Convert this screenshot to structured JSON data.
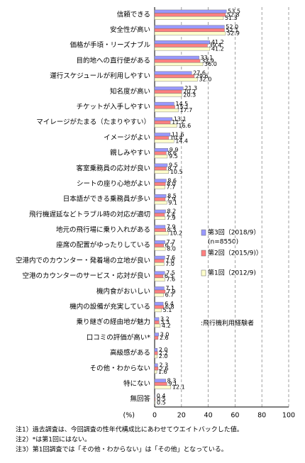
{
  "chart_data": {
    "type": "bar",
    "orientation": "horizontal",
    "categories": [
      "信頼できる",
      "安全性が高い",
      "価格が手頃・リーズナブル",
      "目的地への直行便がある",
      "運行スケジュールが利用しやすい",
      "知名度が高い",
      "チケットが入手しやすい",
      "マイレージがたまる（たまりやすい）",
      "イメージがよい",
      "親しみやすい",
      "客室乗務員の応対が良い",
      "シートの座り心地がよい",
      "日本語ができる乗務員が多い",
      "飛行機遅延などトラブル時の対応が適切",
      "地元の飛行場に乗り入れがある",
      "座席の配置がゆったりしている",
      "空港内でのカウンター・発着場の立地が良い",
      "空港のカウンターのサービス・応対が良い",
      "機内食がおいしい",
      "機内の設備が充実している",
      "乗り継ぎの経由地が魅力",
      "口コミの評価が高い*",
      "高級感がある",
      "その他・わからない",
      "特にない",
      "無回答"
    ],
    "series": [
      {
        "name": "第3回（2018/9）",
        "color": "#9999ff",
        "values": [
          53.5,
          52.0,
          41.2,
          33.1,
          27.6,
          21.3,
          14.5,
          13.1,
          11.6,
          9.9,
          9.5,
          8.6,
          8.5,
          8.2,
          7.9,
          7.7,
          7.6,
          7.5,
          7.1,
          6.4,
          3.2,
          3.0,
          2.0,
          2.3,
          8.3,
          0.4
        ],
        "value_labels": [
          "53.5",
          "52.0",
          "41.2",
          "33.1",
          "27.6",
          "21.3",
          "14.5",
          "13.1",
          "11.6",
          "9.9",
          "9.5",
          "8.6",
          "8.5",
          "8.2",
          "7.9",
          "7.7",
          "7.6",
          "7.5",
          "7.1",
          "6.4",
          "3.2",
          "3.0",
          "2.0",
          "2.3",
          "8.3",
          "0.4"
        ]
      },
      {
        "name": "第2回（2015/9)）",
        "color": "#ff8080",
        "values": [
          52.8,
          52.1,
          39.4,
          33.9,
          29.6,
          20.2,
          15.1,
          11.7,
          10.4,
          8.6,
          8.7,
          8.0,
          7.9,
          7.4,
          8.3,
          6.7,
          7.0,
          6.3,
          7.9,
          6.8,
          3.3,
          2.6,
          2.2,
          2.6,
          9.1,
          0.5
        ],
        "value_labels": [
          "52.8",
          "52.1",
          "39.4",
          "33.9",
          "29.6",
          "20.2",
          "15.1",
          "11.7",
          "10.4",
          "8.6",
          "8.7",
          "8.0",
          "7.9",
          "7.4",
          "8.3",
          "6.7",
          "7.0",
          "6.3",
          "7.9",
          "6.8",
          "3.3",
          "2.6",
          "2.2",
          "2.6",
          "9.1",
          "0.5"
        ]
      },
      {
        "name": "第1回（2012/9)",
        "color": "#ffffcc",
        "values": [
          51.3,
          52.9,
          41.2,
          36.0,
          32.0,
          20.3,
          17.7,
          16.6,
          14.4,
          9.5,
          10.5,
          7.7,
          9.1,
          7.9,
          10.2,
          8.0,
          7.0,
          7.6,
          6.7,
          5.1,
          4.2,
          null,
          2.0,
          1.6,
          12.1,
          0.5
        ],
        "value_labels": [
          "51.3",
          "52.9",
          "41.2",
          "36.0",
          "32.0",
          "20.3",
          "17.7",
          "16.6",
          "14.4",
          "9.5",
          "10.5",
          "7.7",
          "9.1",
          "7.9",
          "10.2",
          "8.0",
          "7.0",
          "7.6",
          "6.7",
          "5.1",
          "4.2",
          null,
          "2.0",
          "1.6",
          "12.1",
          "0.5"
        ]
      }
    ],
    "legend_note": "(n=8550)",
    "annotation": ":飛行機利用経験者",
    "x_label": "(%)",
    "xlim": [
      0,
      100
    ],
    "xticks": [
      0,
      20,
      40,
      60,
      80,
      100
    ],
    "grid": true,
    "notes": [
      "注1）過去調査は、今回調査の性年代構成比にあわせてウエイトバックした値。",
      "注2）*は第1回にはない。",
      "注3）第1回調査では「その他・わからない」は「その他」となっている。"
    ]
  }
}
